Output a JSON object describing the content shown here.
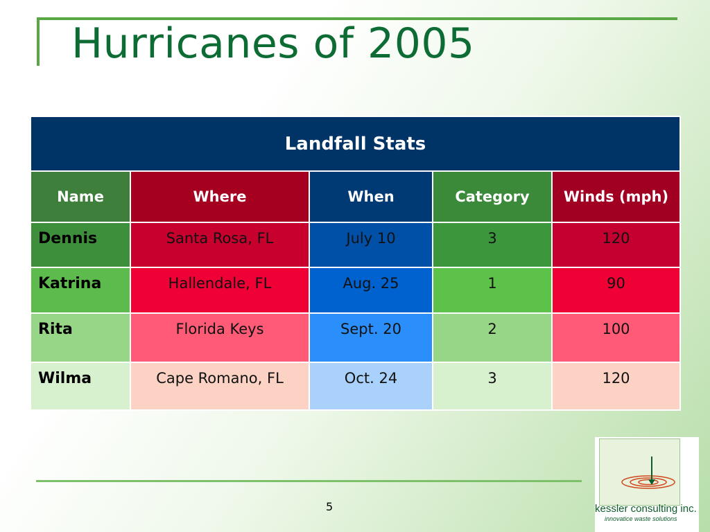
{
  "slide": {
    "title": "Hurricanes of 2005",
    "page_number": "5"
  },
  "table": {
    "caption": "Landfall Stats",
    "headers": [
      "Name",
      "Where",
      "When",
      "Category",
      "Winds (mph)"
    ],
    "rows": [
      {
        "name": "Dennis",
        "where": "Santa Rosa, FL",
        "when": "July 10",
        "category": "3",
        "winds": "120"
      },
      {
        "name": "Katrina",
        "where": "Hallendale, FL",
        "when": "Aug. 25",
        "category": "1",
        "winds": "90"
      },
      {
        "name": "Rita",
        "where": "Florida Keys",
        "when": "Sept. 20",
        "category": "2",
        "winds": "100"
      },
      {
        "name": "Wilma",
        "where": "Cape Romano, FL",
        "when": "Oct. 24",
        "category": "3",
        "winds": "120"
      }
    ]
  },
  "logo": {
    "company": "kessler consulting inc.",
    "tagline": "innovatice waste solutions",
    "accent_color": "#d0471b"
  },
  "colors": {
    "title_green": "#0d6b34",
    "header_navy": "#003366",
    "accent_green": "#5aa845"
  }
}
